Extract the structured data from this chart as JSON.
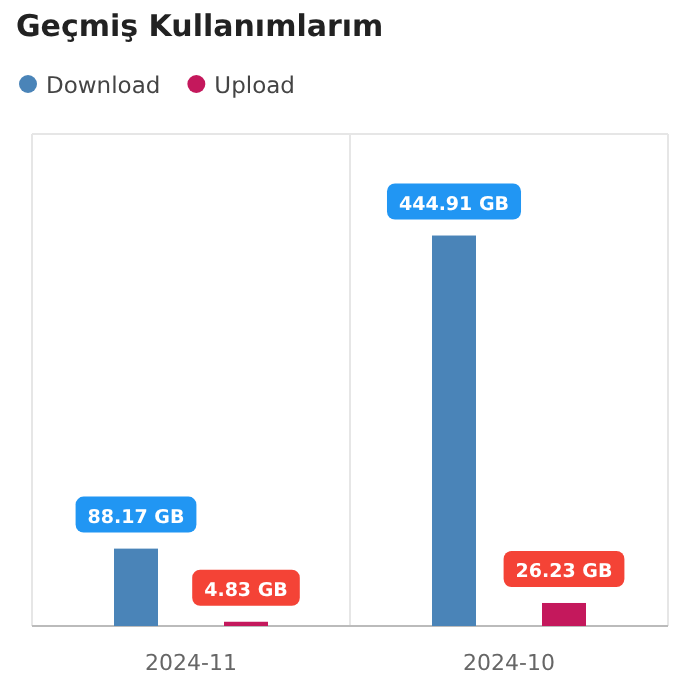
{
  "chart_data": {
    "type": "bar",
    "title": "Geçmiş Kullanımlarım",
    "categories": [
      "2024-11",
      "2024-10"
    ],
    "series": [
      {
        "name": "Download",
        "color": "#4a84b8",
        "values": [
          88.17,
          444.91
        ],
        "value_labels": [
          "88.17 GB",
          "444.91 GB"
        ]
      },
      {
        "name": "Upload",
        "color": "#c4185c",
        "values": [
          4.83,
          26.23
        ],
        "value_labels": [
          "4.83 GB",
          "26.23 GB"
        ]
      }
    ],
    "legend": "top left",
    "grid": "x"
  }
}
